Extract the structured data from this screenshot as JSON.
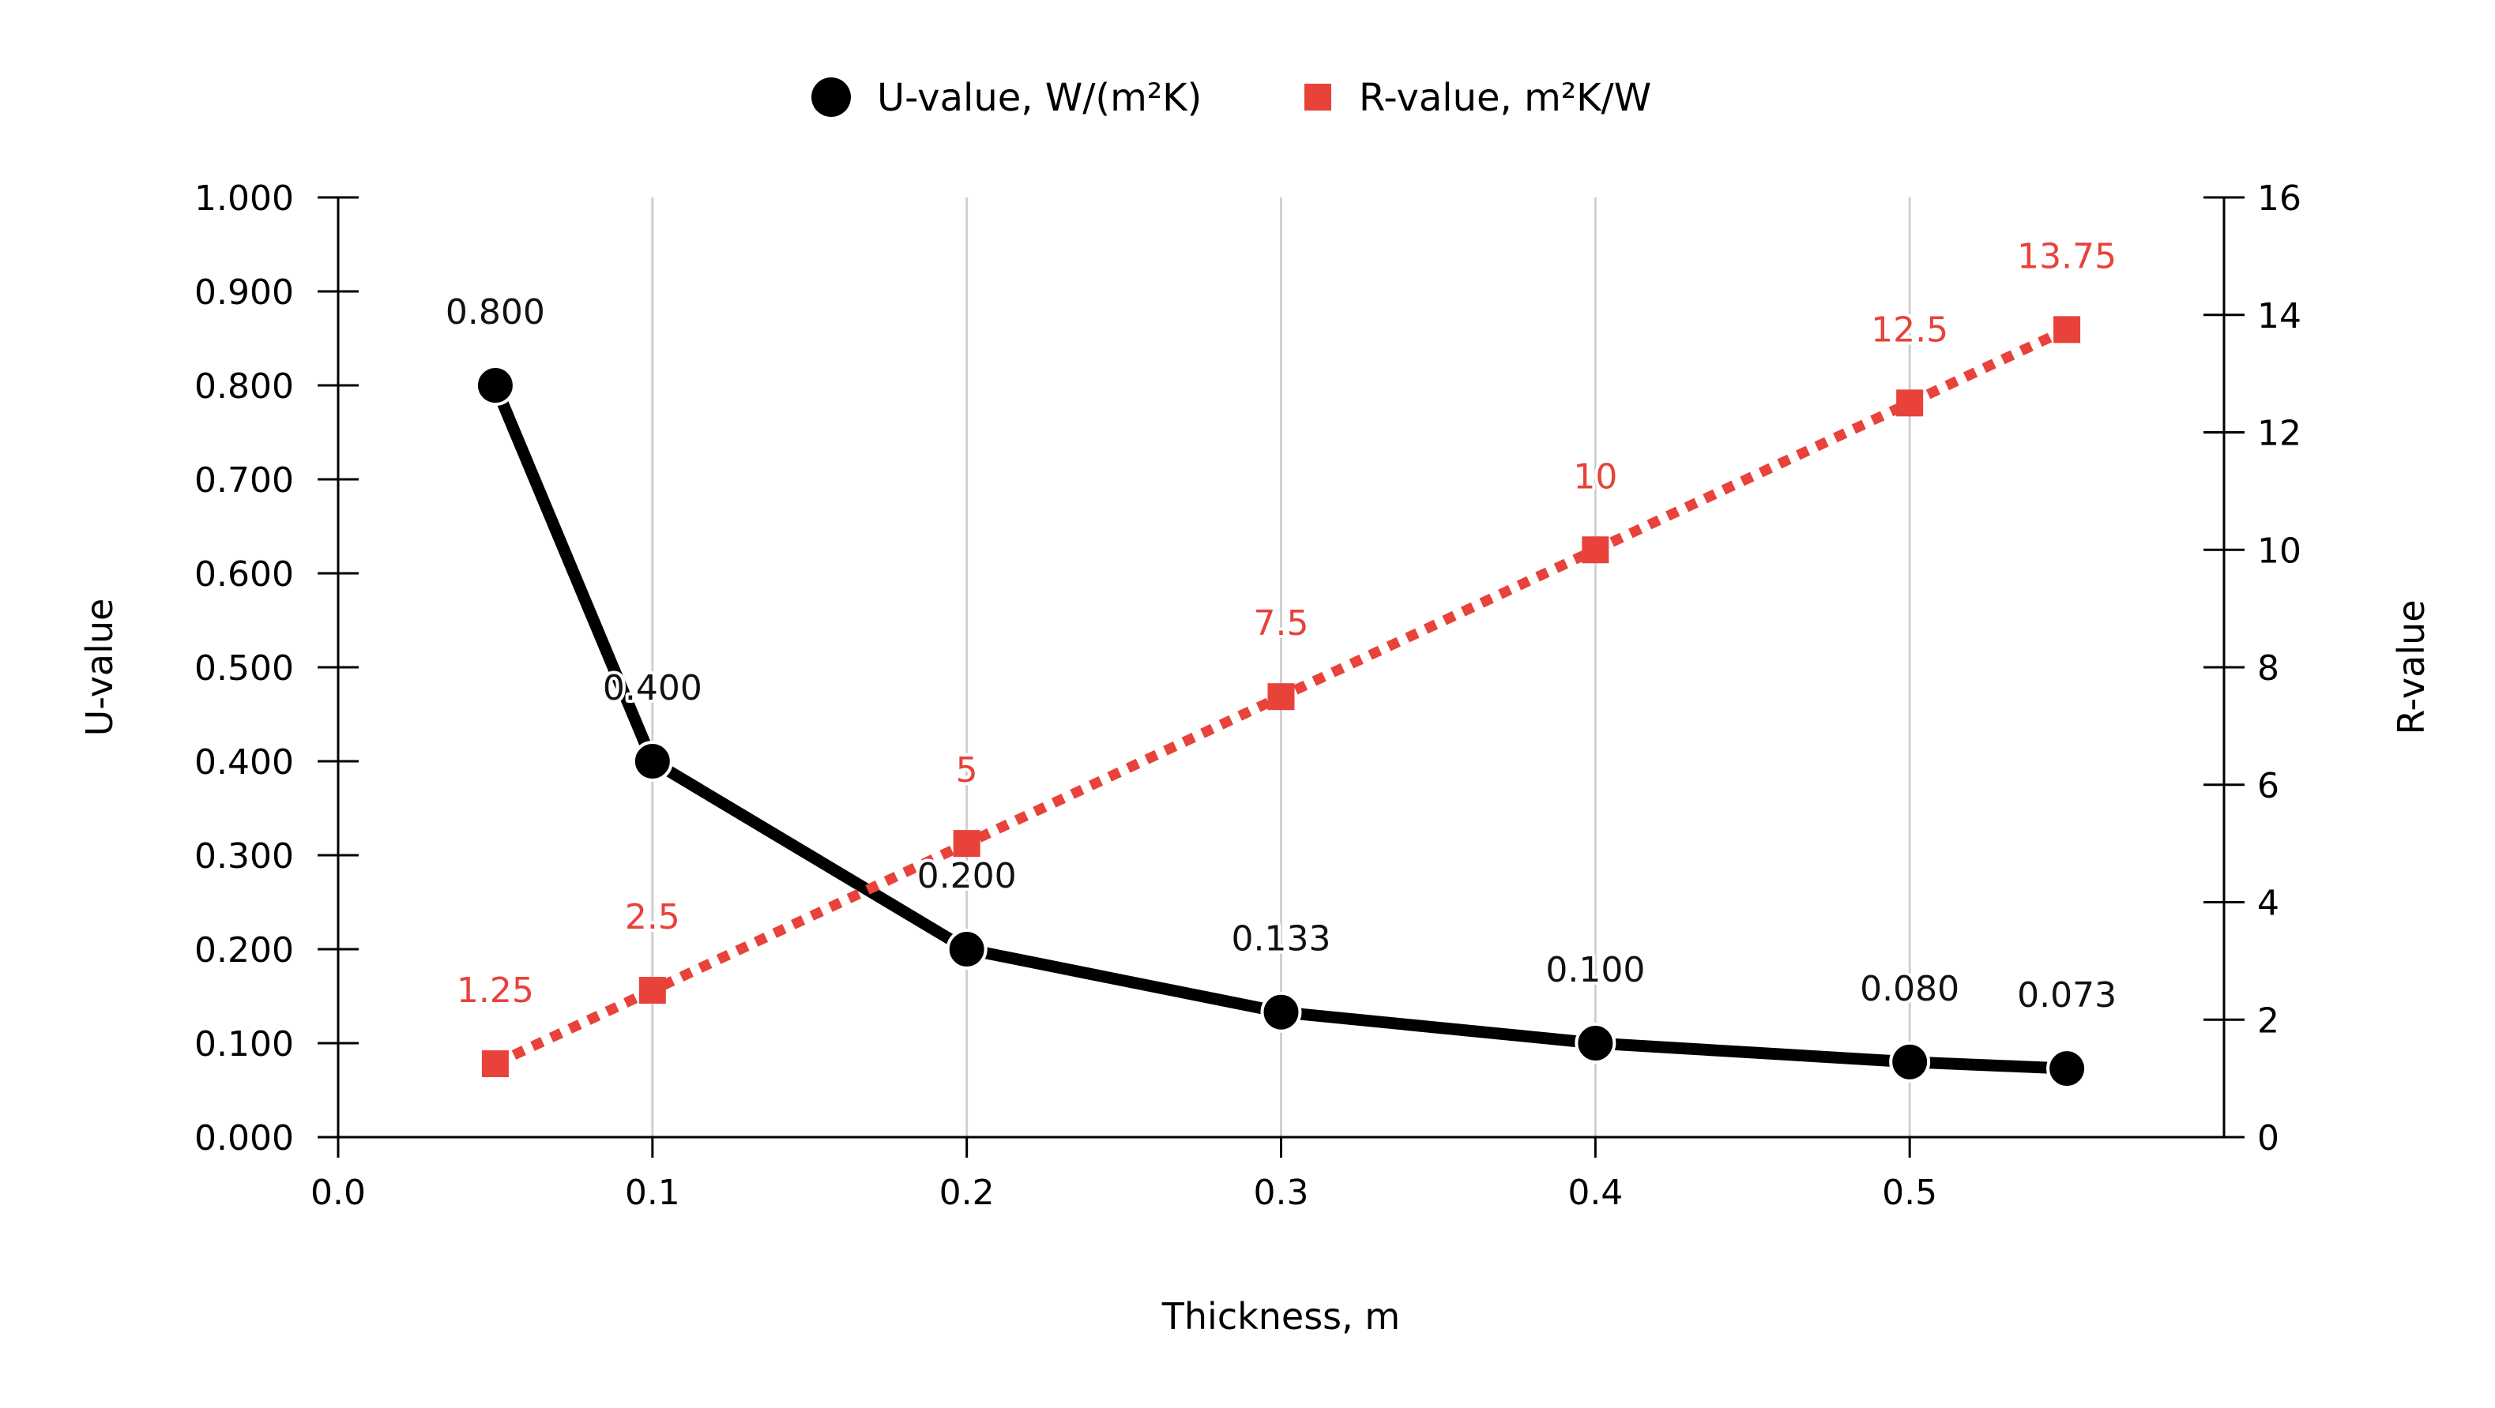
{
  "chart_data": {
    "type": "line",
    "title": "",
    "xlabel": "Thickness, m",
    "ylabel_left": "U-value",
    "ylabel_right": "R-value",
    "xlim": [
      0.0,
      0.6
    ],
    "xticks": [
      0.0,
      0.1,
      0.2,
      0.3,
      0.4,
      0.5
    ],
    "xtick_labels": [
      "0.0",
      "0.1",
      "0.2",
      "0.3",
      "0.4",
      "0.5"
    ],
    "ylim_left": [
      0.0,
      1.0
    ],
    "yticks_left": [
      0.0,
      0.1,
      0.2,
      0.3,
      0.4,
      0.5,
      0.6,
      0.7,
      0.8,
      0.9,
      1.0
    ],
    "ytick_labels_left": [
      "0.000",
      "0.100",
      "0.200",
      "0.300",
      "0.400",
      "0.500",
      "0.600",
      "0.700",
      "0.800",
      "0.900",
      "1.000"
    ],
    "ylim_right": [
      0,
      16
    ],
    "yticks_right": [
      0,
      2,
      4,
      6,
      8,
      10,
      12,
      14,
      16
    ],
    "ytick_labels_right": [
      "0",
      "2",
      "4",
      "6",
      "8",
      "10",
      "12",
      "14",
      "16"
    ],
    "grid": "vertical",
    "legend_position": "top-center",
    "x": [
      0.05,
      0.1,
      0.2,
      0.3,
      0.4,
      0.5,
      0.55
    ],
    "series": [
      {
        "name": "U-value, W/(m²K)",
        "axis": "left",
        "marker": "circle",
        "line_style": "solid",
        "color": "#000000",
        "values": [
          0.8,
          0.4,
          0.2,
          0.133,
          0.1,
          0.08,
          0.073
        ],
        "labels": [
          "0.800",
          "0.400",
          "0.200",
          "0.133",
          "0.100",
          "0.080",
          "0.073"
        ]
      },
      {
        "name": "R-value, m²K/W",
        "axis": "right",
        "marker": "square",
        "line_style": "dotted",
        "color": "#e8423a",
        "values": [
          1.25,
          2.5,
          5,
          7.5,
          10,
          12.5,
          13.75
        ],
        "labels": [
          "1.25",
          "2.5",
          "5",
          "7.5",
          "10",
          "12.5",
          "13.75"
        ]
      }
    ]
  }
}
